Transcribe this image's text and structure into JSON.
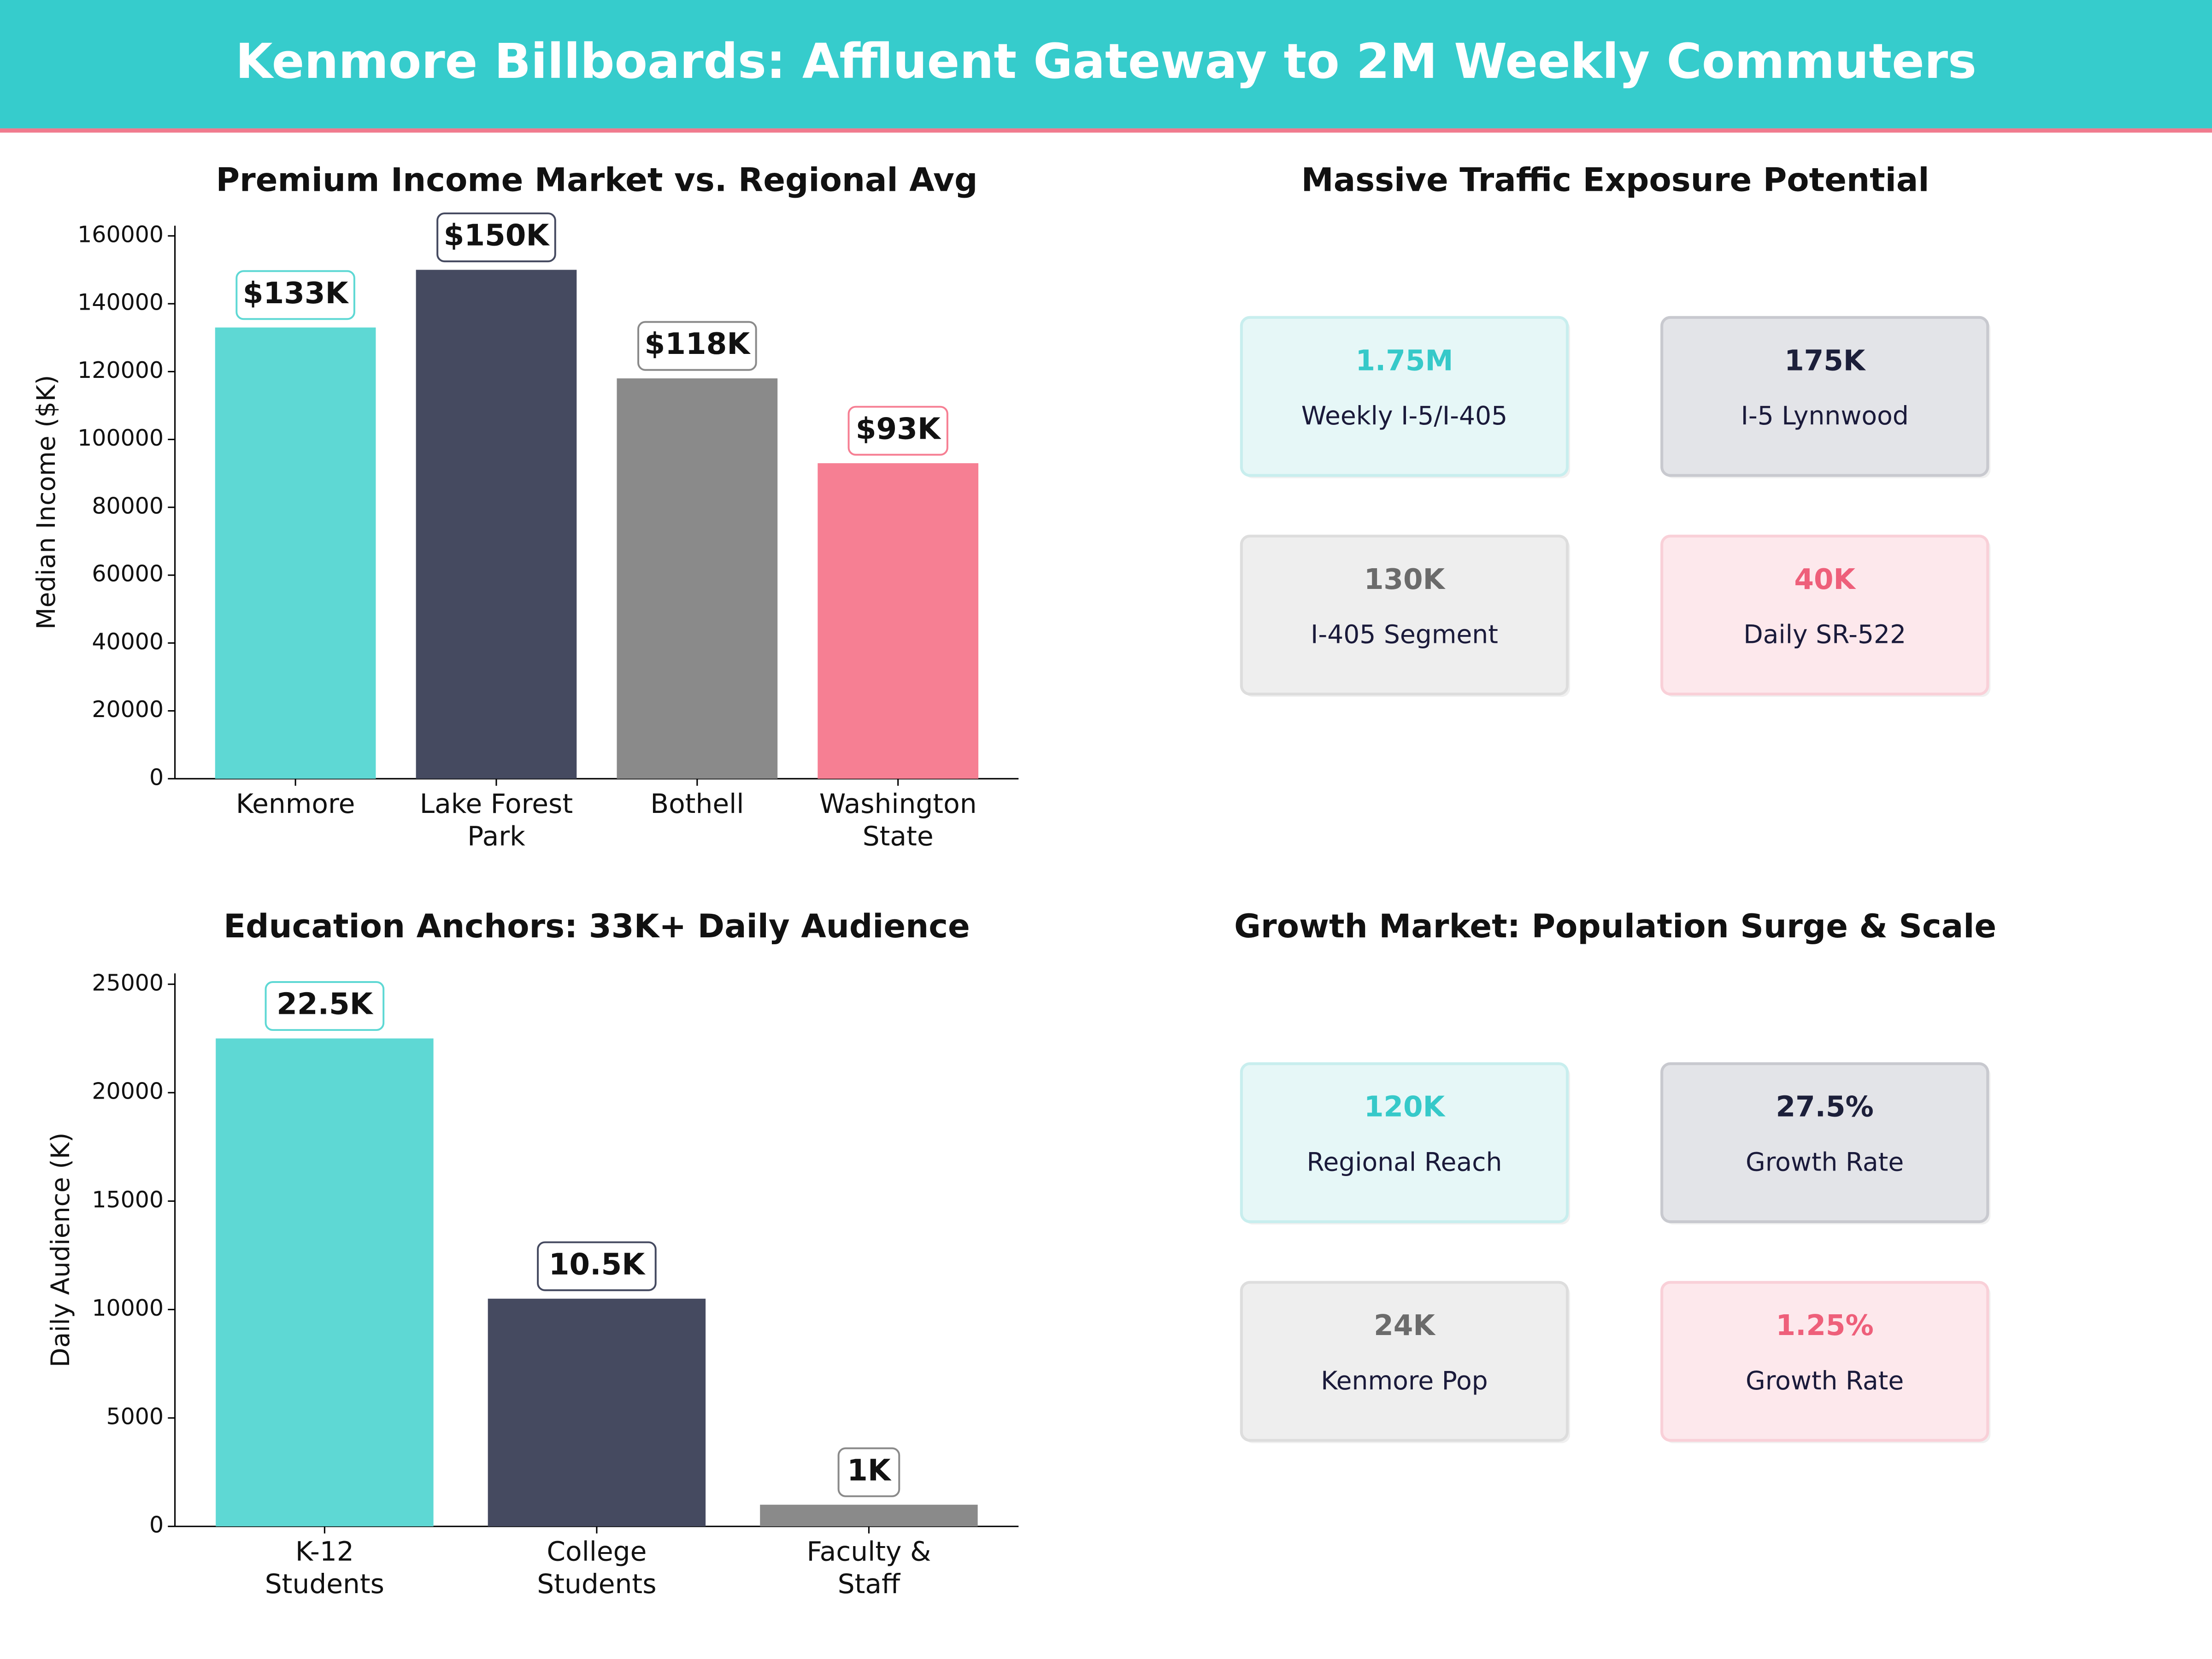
{
  "title": "Kenmore Billboards: Affluent Gateway to 2M Weekly Commuters",
  "chart_data": [
    {
      "type": "bar",
      "title": "Premium Income Market vs. Regional Avg",
      "ylabel": "Median Income ($K)",
      "categories": [
        "Kenmore",
        "Lake Forest\nPark",
        "Bothell",
        "Washington\nState"
      ],
      "values": [
        133000,
        150000,
        118000,
        93000
      ],
      "value_labels": [
        "$133K",
        "$150K",
        "$118K",
        "$93K"
      ],
      "colors": [
        "#5ed8d4",
        "#454a60",
        "#8a8a8a",
        "#f67f93"
      ],
      "ylim": [
        0,
        163000
      ],
      "yticks": [
        0,
        20000,
        40000,
        60000,
        80000,
        100000,
        120000,
        140000,
        160000
      ]
    },
    {
      "type": "cards",
      "title": "Massive Traffic Exposure Potential",
      "cards": [
        {
          "value": "1.75M",
          "label": "Weekly I-5/I-405",
          "color": "#36c9c9",
          "background": "#e6f7f7",
          "border": "#c8eeee"
        },
        {
          "value": "175K",
          "label": "I-5 Lynnwood",
          "color": "#1c1f3a",
          "background": "#e3e4e8",
          "border": "#c8c9cf"
        },
        {
          "value": "130K",
          "label": "I-405 Segment",
          "color": "#6b6b6b",
          "background": "#eeeeee",
          "border": "#dddddd"
        },
        {
          "value": "40K",
          "label": "Daily SR-522",
          "color": "#ee5f7a",
          "background": "#fde8ec",
          "border": "#f9d0d8"
        }
      ]
    },
    {
      "type": "bar",
      "title": "Education Anchors: 33K+ Daily Audience",
      "ylabel": "Daily Audience (K)",
      "categories": [
        "K-12\nStudents",
        "College\nStudents",
        "Faculty &\nStaff"
      ],
      "values": [
        22500,
        10500,
        1000
      ],
      "value_labels": [
        "22.5K",
        "10.5K",
        "1K"
      ],
      "colors": [
        "#5ed8d4",
        "#454a60",
        "#8a8a8a"
      ],
      "ylim": [
        0,
        25500
      ],
      "yticks": [
        0,
        5000,
        10000,
        15000,
        20000,
        25000
      ]
    },
    {
      "type": "cards",
      "title": "Growth Market: Population Surge & Scale",
      "cards": [
        {
          "value": "120K",
          "label": "Regional Reach",
          "color": "#36c9c9",
          "background": "#e6f7f7",
          "border": "#c8eeee"
        },
        {
          "value": "27.5%",
          "label": "Growth Rate",
          "color": "#1c1f3a",
          "background": "#e3e4e8",
          "border": "#c8c9cf"
        },
        {
          "value": "24K",
          "label": "Kenmore Pop",
          "color": "#6b6b6b",
          "background": "#eeeeee",
          "border": "#dddddd"
        },
        {
          "value": "1.25%",
          "label": "Growth Rate",
          "color": "#ee5f7a",
          "background": "#fde8ec",
          "border": "#f9d0d8"
        }
      ]
    }
  ]
}
